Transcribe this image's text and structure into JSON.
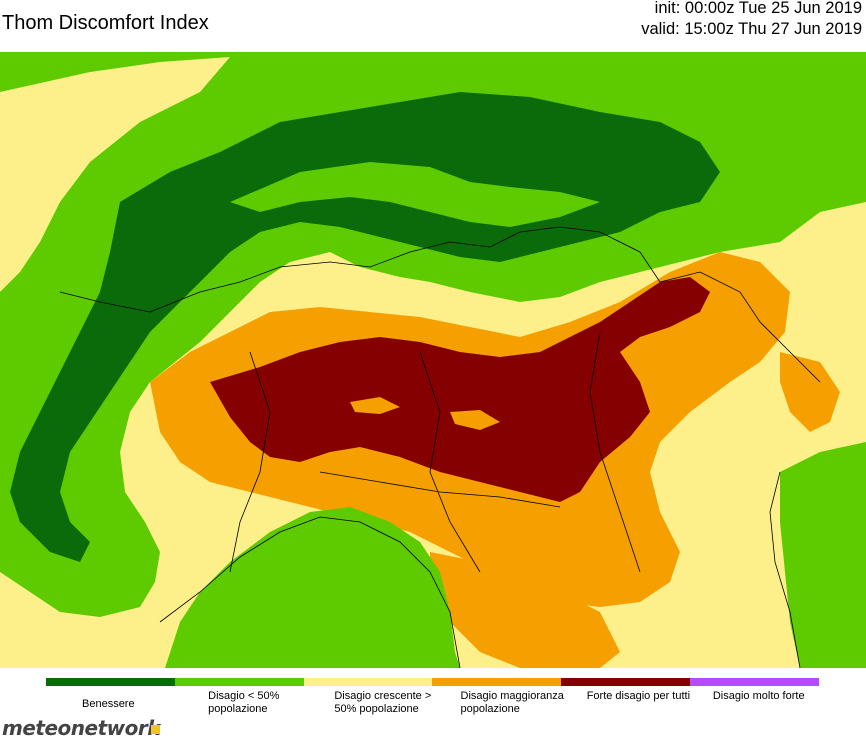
{
  "header": {
    "title": "Thom Discomfort Index",
    "init": "init: 00:00z Tue 25 Jun 2019",
    "valid": "valid: 15:00z Thu 27 Jun 2019"
  },
  "legend": [
    {
      "label": "Benessere",
      "color": "#0b6b0b"
    },
    {
      "label": "Disagio < 50% popolazione",
      "color": "#5ecb00"
    },
    {
      "label": "Disagio crescente > 50% popolazione",
      "color": "#fdf08a"
    },
    {
      "label": "Disagio maggioranza popolazione",
      "color": "#f5a000"
    },
    {
      "label": "Forte disagio per tutti",
      "color": "#850000"
    },
    {
      "label": "Disagio molto forte",
      "color": "#b24dff"
    }
  ],
  "brand": {
    "text": "meteonetwork",
    "color": "#f1c232"
  }
}
